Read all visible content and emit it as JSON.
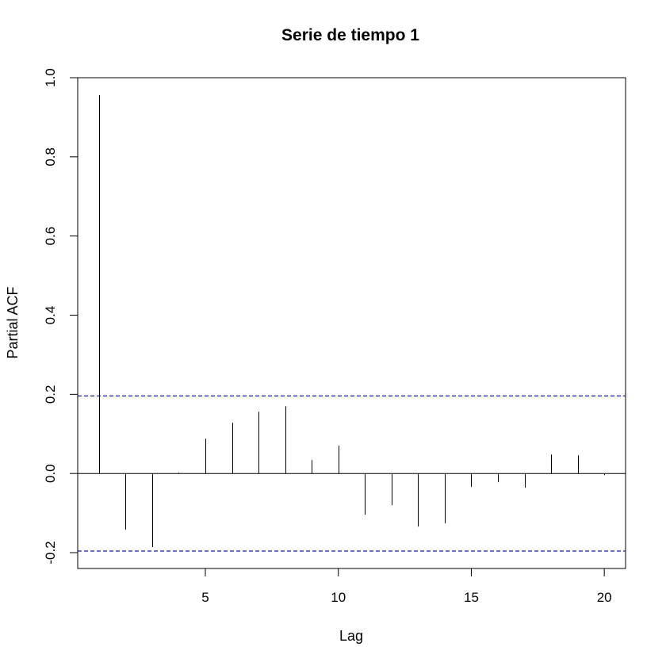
{
  "chart_data": {
    "type": "bar",
    "title": "Serie de tiempo 1",
    "xlabel": "Lag",
    "ylabel": "Partial ACF",
    "xlim": [
      0.2,
      20.8
    ],
    "ylim": [
      -0.24,
      1.0
    ],
    "x_ticks": [
      5,
      10,
      15,
      20
    ],
    "y_ticks": [
      -0.2,
      0.0,
      0.2,
      0.4,
      0.6,
      0.8,
      1.0
    ],
    "lags": [
      1,
      2,
      3,
      4,
      5,
      6,
      7,
      8,
      9,
      10,
      11,
      12,
      13,
      14,
      15,
      16,
      17,
      18,
      19,
      20
    ],
    "values": [
      0.956,
      -0.142,
      -0.186,
      0.002,
      0.088,
      0.128,
      0.156,
      0.17,
      0.034,
      0.07,
      -0.104,
      -0.08,
      -0.134,
      -0.126,
      -0.034,
      -0.022,
      -0.036,
      0.048,
      0.046,
      -0.004
    ],
    "confidence_bound": 0.196,
    "series_color": "#000000",
    "bound_color": "#1a1aa6",
    "grid": false
  }
}
